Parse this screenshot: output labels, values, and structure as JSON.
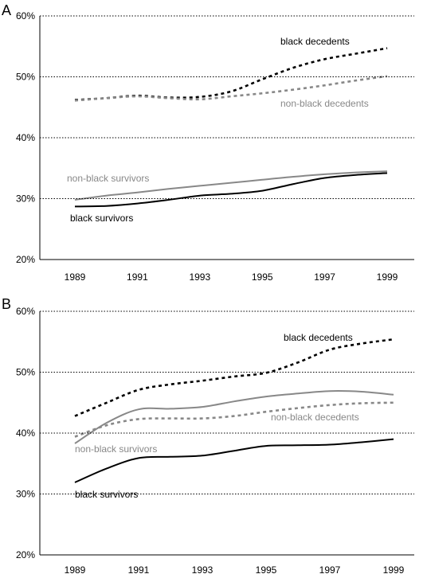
{
  "chart_data": [
    {
      "type": "line",
      "panel_label": "A",
      "x": [
        1989,
        1990,
        1991,
        1992,
        1993,
        1994,
        1995,
        1996,
        1997,
        1998,
        1999
      ],
      "xticks": [
        "1989",
        "1991",
        "1993",
        "1995",
        "1997",
        "1999"
      ],
      "yticks": [
        "20%",
        "30%",
        "40%",
        "50%",
        "60%"
      ],
      "ylim": [
        20,
        60
      ],
      "grid": true,
      "series": [
        {
          "name": "black decedents",
          "style": "dotted",
          "color": "#000000",
          "values": [
            46.2,
            46.5,
            46.9,
            46.6,
            46.7,
            47.6,
            49.6,
            51.5,
            52.9,
            53.8,
            54.7
          ]
        },
        {
          "name": "non-black decedents",
          "style": "dotted",
          "color": "#888888",
          "values": [
            46.1,
            46.5,
            46.8,
            46.5,
            46.3,
            46.8,
            47.3,
            47.9,
            48.6,
            49.4,
            50.1
          ]
        },
        {
          "name": "non-black survivors",
          "style": "solid",
          "color": "#888888",
          "values": [
            29.8,
            30.5,
            31.0,
            31.6,
            32.1,
            32.6,
            33.1,
            33.6,
            34.0,
            34.3,
            34.5
          ]
        },
        {
          "name": "black survivors",
          "style": "solid",
          "color": "#000000",
          "values": [
            28.7,
            28.8,
            29.2,
            29.8,
            30.5,
            30.8,
            31.3,
            32.4,
            33.4,
            33.9,
            34.2
          ]
        }
      ]
    },
    {
      "type": "line",
      "panel_label": "B",
      "x": [
        1989,
        1990,
        1991,
        1992,
        1993,
        1994,
        1995,
        1996,
        1997,
        1998,
        1999
      ],
      "xticks": [
        "1989",
        "1991",
        "1993",
        "1995",
        "1997",
        "1999"
      ],
      "yticks": [
        "20%",
        "30%",
        "40%",
        "50%",
        "60%"
      ],
      "ylim": [
        20,
        60
      ],
      "grid": true,
      "series": [
        {
          "name": "black decedents",
          "style": "dotted",
          "color": "#000000",
          "values": [
            42.8,
            45.0,
            47.1,
            48.0,
            48.6,
            49.3,
            49.9,
            51.6,
            53.7,
            54.7,
            55.4
          ]
        },
        {
          "name": "non-black survivors",
          "style": "solid",
          "color": "#888888",
          "values": [
            38.3,
            41.7,
            43.9,
            44.0,
            44.3,
            45.2,
            46.0,
            46.5,
            46.9,
            46.8,
            46.3
          ]
        },
        {
          "name": "non-black decedents",
          "style": "dotted",
          "color": "#888888",
          "values": [
            39.4,
            41.3,
            42.3,
            42.4,
            42.4,
            42.8,
            43.5,
            44.1,
            44.6,
            44.9,
            45.0
          ]
        },
        {
          "name": "black survivors",
          "style": "solid",
          "color": "#000000",
          "values": [
            31.9,
            34.2,
            35.9,
            36.1,
            36.3,
            37.1,
            37.9,
            38.0,
            38.1,
            38.5,
            39.0
          ]
        }
      ]
    }
  ]
}
